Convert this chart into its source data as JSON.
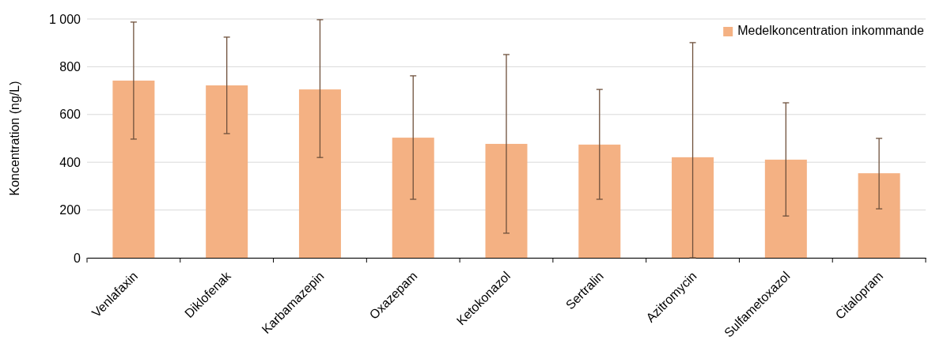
{
  "chart_data": {
    "type": "bar",
    "ylabel": "Koncentration (ng/L)",
    "categories": [
      "Venlafaxin",
      "Diklofenak",
      "Karbamazepin",
      "Oxazepam",
      "Ketokonazol",
      "Sertralin",
      "Azitromycin",
      "Sulfametoxazol",
      "Citalopram"
    ],
    "series": [
      {
        "name": "Medelkoncentration inkommande",
        "color": "#f4b183",
        "values": [
          742,
          722,
          705,
          503,
          477,
          474,
          421,
          411,
          354
        ],
        "errors": [
          [
            497,
            987
          ],
          [
            520,
            924
          ],
          [
            420,
            997
          ],
          [
            245,
            762
          ],
          [
            103,
            851
          ],
          [
            245,
            705
          ],
          [
            0,
            901
          ],
          [
            175,
            649
          ],
          [
            205,
            500
          ]
        ]
      }
    ],
    "ylim": [
      0,
      1000
    ],
    "yticks": [
      0,
      200,
      400,
      600,
      800,
      {
        "value": 1000,
        "label": "1 000"
      }
    ],
    "grid": "y",
    "legend": "top right"
  }
}
